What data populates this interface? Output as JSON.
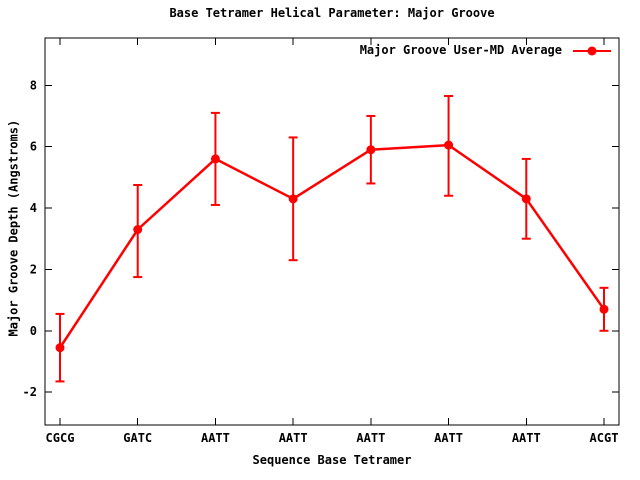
{
  "window": {
    "background": "#ffffff"
  },
  "chart_data": {
    "type": "line",
    "title": "Base Tetramer Helical Parameter: Major Groove",
    "xlabel": "Sequence Base Tetramer",
    "ylabel": "Major Groove Depth (Angstroms)",
    "categories": [
      "CGCG",
      "GATC",
      "AATT",
      "AATT",
      "AATT",
      "AATT",
      "AATT",
      "ACGT"
    ],
    "series": [
      {
        "name": "Major Groove User-MD Average",
        "values": [
          -0.55,
          3.3,
          5.6,
          4.3,
          5.9,
          6.05,
          4.3,
          0.7
        ],
        "err_low": [
          -1.65,
          1.75,
          4.1,
          2.3,
          4.8,
          4.4,
          3.0,
          0.0
        ],
        "err_high": [
          0.55,
          4.75,
          7.1,
          6.3,
          7.0,
          7.65,
          5.6,
          1.4
        ],
        "color": "#ff0000",
        "marker": "filled-circle",
        "error_bars": true
      }
    ],
    "legend": {
      "label": "Major Groove User-MD Average",
      "position": "top-right-inside"
    },
    "ylim": [
      -3.07,
      9.54
    ],
    "yticks": [
      -2,
      0,
      2,
      4,
      6,
      8
    ],
    "grid": false,
    "axis_color": "#000000",
    "border": "full-box-with-mirrored-ticks"
  }
}
